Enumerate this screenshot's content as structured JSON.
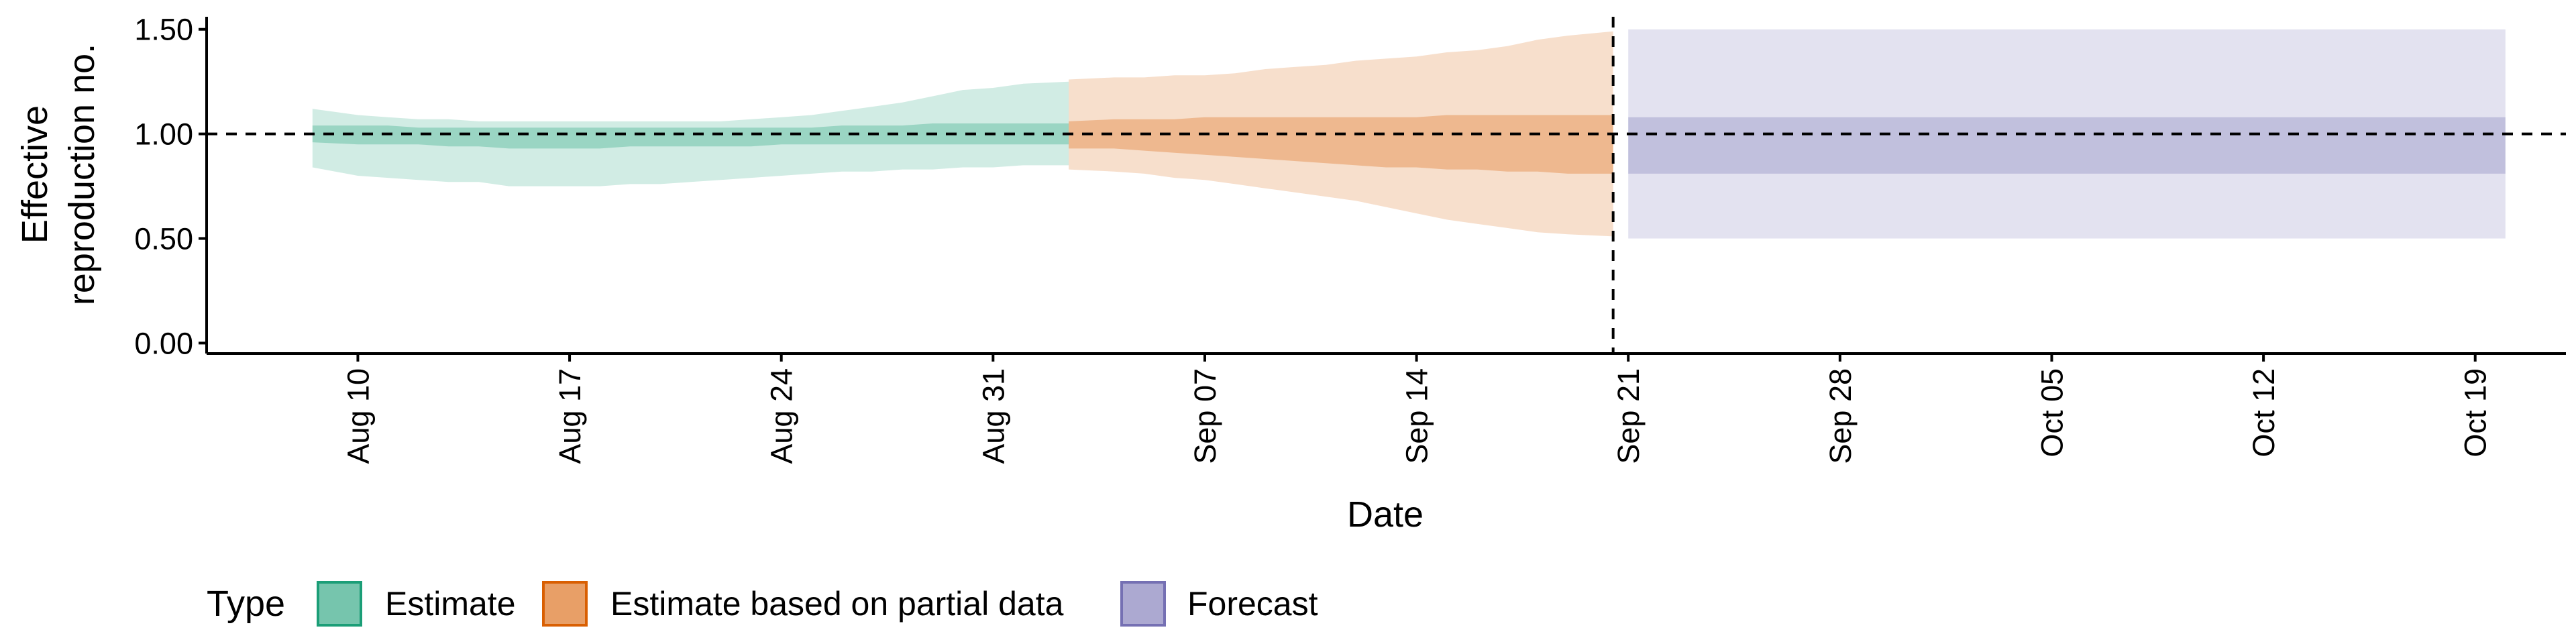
{
  "chart_data": {
    "type": "area",
    "title": "",
    "xlabel": "Date",
    "ylabel": [
      "Effective",
      "reproduction no."
    ],
    "ylim": [
      -0.05,
      1.56
    ],
    "xlim": [
      "2021-08-05",
      "2021-10-22"
    ],
    "yticks": [
      0,
      0.5,
      1,
      1.5
    ],
    "ytick_labels": [
      "0.00",
      "0.50",
      "1.00",
      "1.50"
    ],
    "xticks": [
      "2021-08-10",
      "2021-08-17",
      "2021-08-24",
      "2021-08-31",
      "2021-09-07",
      "2021-09-14",
      "2021-09-21",
      "2021-09-28",
      "2021-10-05",
      "2021-10-12",
      "2021-10-19"
    ],
    "xtick_labels": [
      "Aug 10",
      "Aug 17",
      "Aug 24",
      "Aug 31",
      "Sep 07",
      "Sep 14",
      "Sep 21",
      "Sep 28",
      "Oct 05",
      "Oct 12",
      "Oct 19"
    ],
    "reference_line_y": 1.0,
    "vertical_line_x": "2021-09-20",
    "grid": false,
    "legend_position": "bottom",
    "legend_title": "Type",
    "series": [
      {
        "name": "Estimate",
        "color": "#1b9e77",
        "dates": [
          "2021-08-09",
          "2021-08-10",
          "2021-08-11",
          "2021-08-12",
          "2021-08-13",
          "2021-08-14",
          "2021-08-15",
          "2021-08-16",
          "2021-08-17",
          "2021-08-18",
          "2021-08-19",
          "2021-08-20",
          "2021-08-21",
          "2021-08-22",
          "2021-08-23",
          "2021-08-24",
          "2021-08-25",
          "2021-08-26",
          "2021-08-27",
          "2021-08-28",
          "2021-08-29",
          "2021-08-30",
          "2021-08-31",
          "2021-09-01",
          "2021-09-02"
        ],
        "lower_90": [
          0.84,
          0.8,
          0.79,
          0.78,
          0.77,
          0.77,
          0.75,
          0.75,
          0.75,
          0.75,
          0.76,
          0.76,
          0.77,
          0.78,
          0.79,
          0.8,
          0.81,
          0.82,
          0.82,
          0.83,
          0.83,
          0.84,
          0.84,
          0.85,
          0.85
        ],
        "upper_90": [
          1.12,
          1.09,
          1.08,
          1.07,
          1.07,
          1.06,
          1.06,
          1.06,
          1.06,
          1.06,
          1.06,
          1.06,
          1.06,
          1.06,
          1.07,
          1.08,
          1.09,
          1.11,
          1.13,
          1.15,
          1.18,
          1.21,
          1.22,
          1.24,
          1.25
        ],
        "lower_50": [
          0.96,
          0.95,
          0.95,
          0.95,
          0.94,
          0.94,
          0.93,
          0.93,
          0.93,
          0.93,
          0.94,
          0.94,
          0.94,
          0.94,
          0.94,
          0.95,
          0.95,
          0.95,
          0.95,
          0.95,
          0.95,
          0.95,
          0.95,
          0.95,
          0.95
        ],
        "upper_50": [
          1.04,
          1.04,
          1.04,
          1.03,
          1.03,
          1.03,
          1.03,
          1.03,
          1.03,
          1.03,
          1.03,
          1.03,
          1.03,
          1.03,
          1.03,
          1.03,
          1.03,
          1.04,
          1.04,
          1.04,
          1.05,
          1.05,
          1.05,
          1.05,
          1.05
        ]
      },
      {
        "name": "Estimate based on partial data",
        "color": "#d95f02",
        "dates": [
          "2021-09-03",
          "2021-09-04",
          "2021-09-05",
          "2021-09-06",
          "2021-09-07",
          "2021-09-08",
          "2021-09-09",
          "2021-09-10",
          "2021-09-11",
          "2021-09-12",
          "2021-09-13",
          "2021-09-14",
          "2021-09-15",
          "2021-09-16",
          "2021-09-17",
          "2021-09-18",
          "2021-09-19",
          "2021-09-20"
        ],
        "lower_90": [
          0.83,
          0.82,
          0.81,
          0.79,
          0.78,
          0.76,
          0.74,
          0.72,
          0.7,
          0.68,
          0.65,
          0.62,
          0.59,
          0.57,
          0.55,
          0.53,
          0.52,
          0.51
        ],
        "upper_90": [
          1.26,
          1.27,
          1.27,
          1.28,
          1.28,
          1.29,
          1.31,
          1.32,
          1.33,
          1.35,
          1.36,
          1.37,
          1.39,
          1.4,
          1.42,
          1.45,
          1.47,
          1.49
        ],
        "lower_50": [
          0.93,
          0.93,
          0.92,
          0.91,
          0.9,
          0.89,
          0.88,
          0.87,
          0.86,
          0.85,
          0.84,
          0.84,
          0.83,
          0.83,
          0.82,
          0.82,
          0.81,
          0.81
        ],
        "upper_50": [
          1.06,
          1.07,
          1.07,
          1.07,
          1.08,
          1.08,
          1.08,
          1.08,
          1.08,
          1.08,
          1.08,
          1.08,
          1.09,
          1.09,
          1.09,
          1.09,
          1.09,
          1.09
        ]
      },
      {
        "name": "Forecast",
        "color": "#7570b3",
        "dates": [
          "2021-09-21",
          "2021-10-20"
        ],
        "lower_90": [
          0.5,
          0.5
        ],
        "upper_90": [
          1.5,
          1.5
        ],
        "lower_50": [
          0.81,
          0.81
        ],
        "upper_50": [
          1.08,
          1.08
        ]
      }
    ]
  }
}
